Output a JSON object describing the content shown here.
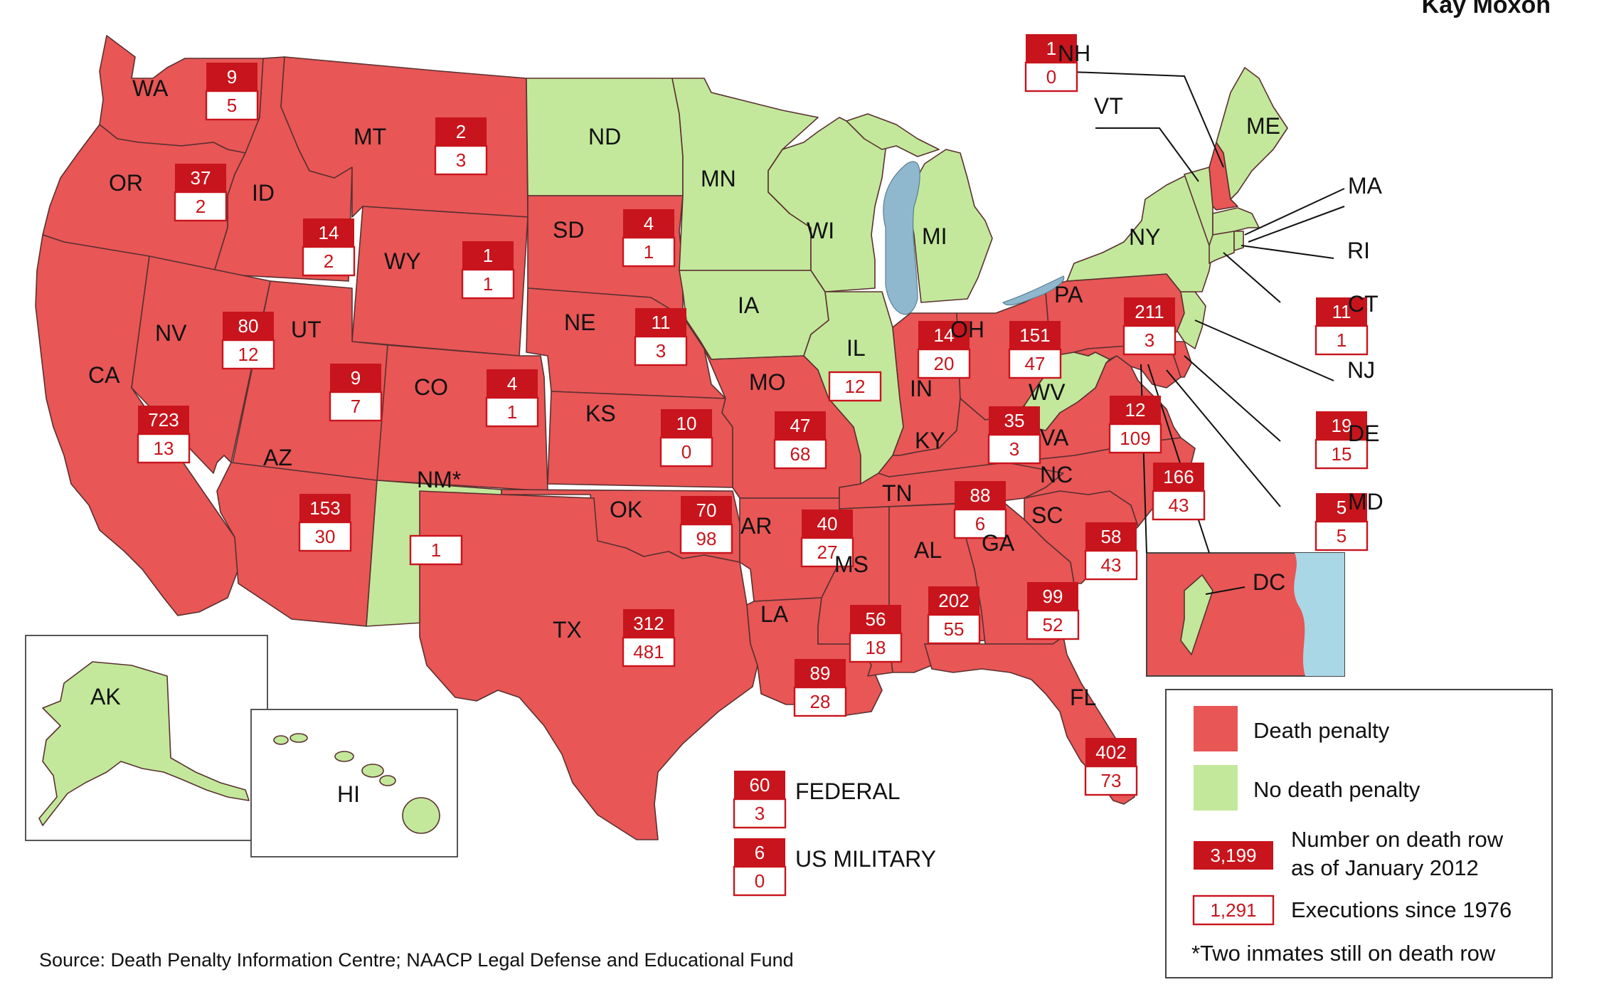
{
  "header": {
    "author": "Kay Moxon"
  },
  "colors": {
    "death_penalty": "#e85656",
    "no_death_penalty": "#c3e89b",
    "box_red": "#c8141c",
    "water": "#8fb8cf"
  },
  "states": [
    {
      "abbr": "WA",
      "death_row": "9",
      "executions": "5",
      "status": "death_penalty"
    },
    {
      "abbr": "OR",
      "death_row": "37",
      "executions": "2",
      "status": "death_penalty"
    },
    {
      "abbr": "CA",
      "death_row": "723",
      "executions": "13",
      "status": "death_penalty"
    },
    {
      "abbr": "ID",
      "death_row": "14",
      "executions": "2",
      "status": "death_penalty"
    },
    {
      "abbr": "NV",
      "death_row": "80",
      "executions": "12",
      "status": "death_penalty"
    },
    {
      "abbr": "MT",
      "death_row": "2",
      "executions": "3",
      "status": "death_penalty"
    },
    {
      "abbr": "WY",
      "death_row": "1",
      "executions": "1",
      "status": "death_penalty"
    },
    {
      "abbr": "UT",
      "death_row": "9",
      "executions": "7",
      "status": "death_penalty"
    },
    {
      "abbr": "CO",
      "death_row": "4",
      "executions": "1",
      "status": "death_penalty"
    },
    {
      "abbr": "AZ",
      "death_row": "153",
      "executions": "30",
      "status": "death_penalty"
    },
    {
      "abbr": "NM*",
      "death_row": "",
      "executions": "1",
      "status": "no_death_penalty"
    },
    {
      "abbr": "ND",
      "death_row": "",
      "executions": "",
      "status": "no_death_penalty"
    },
    {
      "abbr": "SD",
      "death_row": "4",
      "executions": "1",
      "status": "death_penalty"
    },
    {
      "abbr": "NE",
      "death_row": "11",
      "executions": "3",
      "status": "death_penalty"
    },
    {
      "abbr": "KS",
      "death_row": "10",
      "executions": "0",
      "status": "death_penalty"
    },
    {
      "abbr": "OK",
      "death_row": "70",
      "executions": "98",
      "status": "death_penalty"
    },
    {
      "abbr": "TX",
      "death_row": "312",
      "executions": "481",
      "status": "death_penalty"
    },
    {
      "abbr": "MN",
      "death_row": "",
      "executions": "",
      "status": "no_death_penalty"
    },
    {
      "abbr": "IA",
      "death_row": "",
      "executions": "",
      "status": "no_death_penalty"
    },
    {
      "abbr": "MO",
      "death_row": "47",
      "executions": "68",
      "status": "death_penalty"
    },
    {
      "abbr": "AR",
      "death_row": "40",
      "executions": "27",
      "status": "death_penalty"
    },
    {
      "abbr": "LA",
      "death_row": "89",
      "executions": "28",
      "status": "death_penalty"
    },
    {
      "abbr": "WI",
      "death_row": "",
      "executions": "",
      "status": "no_death_penalty"
    },
    {
      "abbr": "IL",
      "death_row": "",
      "executions": "12",
      "status": "no_death_penalty"
    },
    {
      "abbr": "MI",
      "death_row": "",
      "executions": "",
      "status": "no_death_penalty"
    },
    {
      "abbr": "IN",
      "death_row": "14",
      "executions": "20",
      "status": "death_penalty"
    },
    {
      "abbr": "OH",
      "death_row": "151",
      "executions": "47",
      "status": "death_penalty"
    },
    {
      "abbr": "KY",
      "death_row": "35",
      "executions": "3",
      "status": "death_penalty"
    },
    {
      "abbr": "TN",
      "death_row": "88",
      "executions": "6",
      "status": "death_penalty"
    },
    {
      "abbr": "MS",
      "death_row": "56",
      "executions": "18",
      "status": "death_penalty"
    },
    {
      "abbr": "AL",
      "death_row": "202",
      "executions": "55",
      "status": "death_penalty"
    },
    {
      "abbr": "GA",
      "death_row": "99",
      "executions": "52",
      "status": "death_penalty"
    },
    {
      "abbr": "FL",
      "death_row": "402",
      "executions": "73",
      "status": "death_penalty"
    },
    {
      "abbr": "SC",
      "death_row": "58",
      "executions": "43",
      "status": "death_penalty"
    },
    {
      "abbr": "NC",
      "death_row": "166",
      "executions": "43",
      "status": "death_penalty"
    },
    {
      "abbr": "VA",
      "death_row": "12",
      "executions": "109",
      "status": "death_penalty"
    },
    {
      "abbr": "WV",
      "death_row": "",
      "executions": "",
      "status": "no_death_penalty"
    },
    {
      "abbr": "PA",
      "death_row": "211",
      "executions": "3",
      "status": "death_penalty"
    },
    {
      "abbr": "NY",
      "death_row": "",
      "executions": "",
      "status": "no_death_penalty"
    },
    {
      "abbr": "VT",
      "death_row": "",
      "executions": "",
      "status": "no_death_penalty"
    },
    {
      "abbr": "NH",
      "death_row": "1",
      "executions": "0",
      "status": "death_penalty"
    },
    {
      "abbr": "ME",
      "death_row": "",
      "executions": "",
      "status": "no_death_penalty"
    },
    {
      "abbr": "MA",
      "death_row": "",
      "executions": "",
      "status": "no_death_penalty"
    },
    {
      "abbr": "RI",
      "death_row": "",
      "executions": "",
      "status": "no_death_penalty"
    },
    {
      "abbr": "CT",
      "death_row": "11",
      "executions": "1",
      "status": "death_penalty"
    },
    {
      "abbr": "NJ",
      "death_row": "",
      "executions": "",
      "status": "no_death_penalty"
    },
    {
      "abbr": "DE",
      "death_row": "19",
      "executions": "15",
      "status": "death_penalty"
    },
    {
      "abbr": "MD",
      "death_row": "5",
      "executions": "5",
      "status": "death_penalty"
    },
    {
      "abbr": "DC",
      "death_row": "",
      "executions": "",
      "status": "no_death_penalty"
    },
    {
      "abbr": "AK",
      "death_row": "",
      "executions": "",
      "status": "no_death_penalty"
    },
    {
      "abbr": "HI",
      "death_row": "",
      "executions": "",
      "status": "no_death_penalty"
    }
  ],
  "other": [
    {
      "label": "FEDERAL",
      "death_row": "60",
      "executions": "3"
    },
    {
      "label": "US MILITARY",
      "death_row": "6",
      "executions": "0"
    }
  ],
  "legend": {
    "death_penalty": "Death penalty",
    "no_death_penalty": "No death penalty",
    "death_row_example": "3,199",
    "death_row_line1": "Number on death row",
    "death_row_line2": "as of January 2012",
    "executions_example": "1,291",
    "executions_text": "Executions since 1976",
    "footnote": "*Two inmates still on death row"
  },
  "source": "Source: Death Penalty Information Centre; NAACP Legal Defense and Educational Fund"
}
